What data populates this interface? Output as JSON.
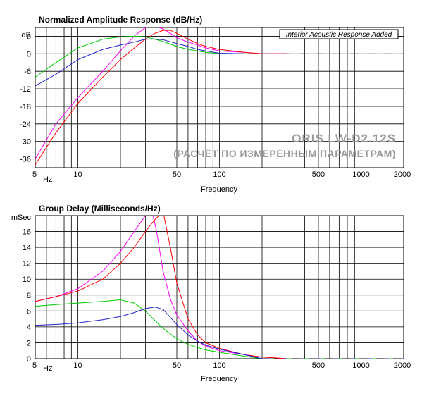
{
  "chart_data": [
    {
      "type": "line",
      "title": "Normalized Amplitude Response (dB/Hz)",
      "xlabel": "Frequency",
      "ylabel": "dB",
      "x_unit_label": "Hz",
      "x_scale": "log",
      "xlim": [
        5,
        2000
      ],
      "ylim": [
        -39,
        9
      ],
      "grid": true,
      "x_tick_labels": [
        "5",
        "10",
        "50",
        "100",
        "500",
        "1000",
        "2000"
      ],
      "y_tick_labels": [
        "6",
        "0",
        "-6",
        "-12",
        "-18",
        "-24",
        "-30",
        "-36"
      ],
      "annotation": "Interior Acoustic Response Added",
      "watermark": [
        "ORIS LW-D2.12S",
        "(РАСЧЁТ ПО ИЗМЕРЕННЫМ ПАРАМЕТРАМ)"
      ],
      "series": [
        {
          "color": "#ff00ff",
          "x": [
            5,
            7,
            10,
            15,
            20,
            25,
            30,
            35,
            40,
            45,
            50,
            60,
            70,
            80,
            100,
            150,
            200,
            300
          ],
          "y": [
            -36,
            -24,
            -15,
            -6,
            1,
            6,
            9,
            9.5,
            8.5,
            7,
            5.5,
            4,
            3,
            2,
            1,
            0.5,
            0,
            0
          ]
        },
        {
          "color": "#ff0000",
          "x": [
            5,
            7,
            10,
            15,
            20,
            25,
            30,
            35,
            40,
            45,
            50,
            60,
            70,
            80,
            100,
            150,
            200,
            300
          ],
          "y": [
            -38,
            -27,
            -17,
            -8,
            -2,
            2,
            5,
            7,
            8,
            8,
            7,
            5,
            3.5,
            2.5,
            1.5,
            0.5,
            0,
            0
          ]
        },
        {
          "color": "#00cc00",
          "x": [
            5,
            7,
            10,
            15,
            20,
            25,
            30,
            35,
            40,
            50,
            60,
            70,
            80,
            100,
            150
          ],
          "y": [
            -8,
            -3,
            2,
            5,
            5.8,
            6,
            5.8,
            5,
            4.2,
            2.5,
            1.5,
            1,
            0.5,
            0,
            0
          ]
        },
        {
          "color": "#2222cc",
          "x": [
            5,
            7,
            10,
            15,
            20,
            25,
            30,
            35,
            40,
            50,
            60,
            70,
            80,
            100,
            150
          ],
          "y": [
            -11,
            -7,
            -2,
            1.5,
            3,
            4,
            5,
            5,
            4.8,
            3.5,
            2.5,
            1.5,
            1,
            0.2,
            0
          ]
        }
      ]
    },
    {
      "type": "line",
      "title": "Group Delay (Milliseconds/Hz)",
      "xlabel": "Frequency",
      "ylabel": "mSec",
      "x_unit_label": "Hz",
      "x_scale": "log",
      "xlim": [
        5,
        2000
      ],
      "ylim": [
        0,
        18
      ],
      "grid": true,
      "x_tick_labels": [
        "5",
        "10",
        "50",
        "100",
        "500",
        "1000",
        "2000"
      ],
      "y_tick_labels": [
        "16",
        "14",
        "12",
        "10",
        "8",
        "6",
        "4",
        "2",
        "0"
      ],
      "series": [
        {
          "color": "#ff00ff",
          "x": [
            5,
            7,
            10,
            15,
            20,
            25,
            30,
            33,
            36,
            40,
            45,
            50,
            60,
            70,
            80,
            100,
            150,
            200,
            300
          ],
          "y": [
            7.2,
            7.8,
            8.8,
            11,
            13.5,
            16,
            18,
            19,
            16,
            11,
            7.5,
            5.5,
            3.5,
            2.2,
            1.6,
            1,
            0.5,
            0.2,
            0
          ]
        },
        {
          "color": "#ff0000",
          "x": [
            5,
            7,
            10,
            15,
            20,
            25,
            30,
            35,
            40,
            45,
            50,
            60,
            70,
            80,
            100,
            150,
            200,
            300
          ],
          "y": [
            7.2,
            7.8,
            8.5,
            10,
            12,
            14,
            16,
            17.5,
            18.5,
            14,
            9.5,
            5,
            3,
            2,
            1.3,
            0.5,
            0.2,
            0
          ]
        },
        {
          "color": "#00cc00",
          "x": [
            5,
            7,
            10,
            15,
            20,
            25,
            30,
            35,
            40,
            50,
            60,
            70,
            80,
            100,
            150,
            200
          ],
          "y": [
            6.6,
            6.8,
            7,
            7.2,
            7.4,
            7,
            6,
            4.8,
            3.8,
            2.5,
            1.8,
            1.4,
            1.1,
            0.8,
            0.3,
            0
          ]
        },
        {
          "color": "#2222cc",
          "x": [
            5,
            7,
            10,
            15,
            20,
            25,
            30,
            35,
            40,
            45,
            50,
            60,
            70,
            80,
            100,
            150,
            200
          ],
          "y": [
            4.2,
            4.3,
            4.5,
            4.9,
            5.3,
            5.8,
            6.3,
            6.5,
            6.2,
            5.2,
            4.3,
            3,
            2.2,
            1.7,
            1.2,
            0.5,
            0
          ]
        }
      ]
    }
  ]
}
